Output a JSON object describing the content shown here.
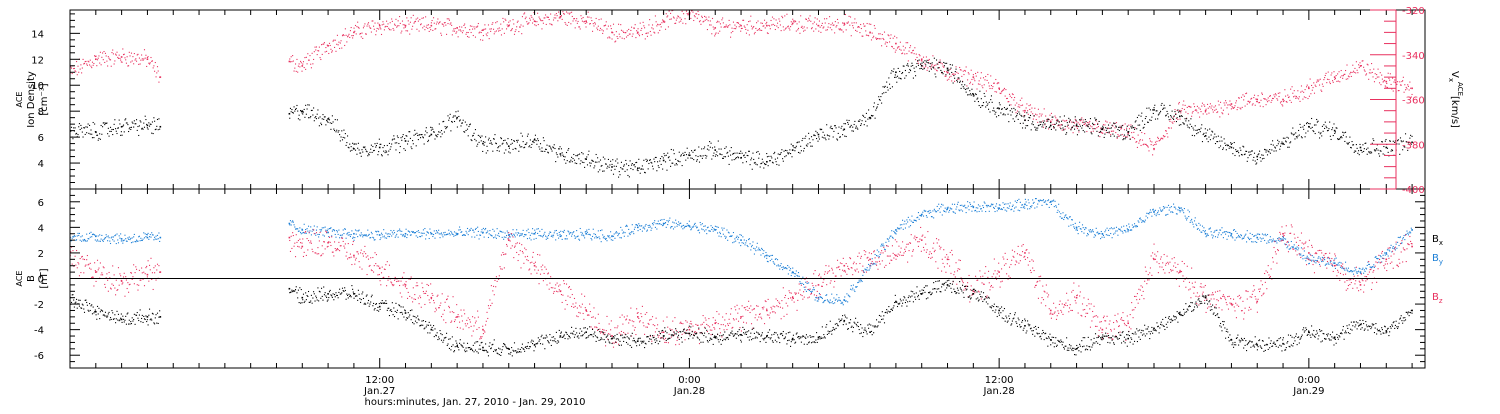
{
  "figure": {
    "xtitle": "hours:minutes, Jan. 27, 2010 - Jan. 29, 2010",
    "xticks": [
      {
        "t": 12,
        "time": "12:00",
        "date": "Jan.27"
      },
      {
        "t": 24,
        "time": "0:00",
        "date": "Jan.28"
      },
      {
        "t": 36,
        "time": "12:00",
        "date": "Jan.28"
      },
      {
        "t": 48,
        "time": "0:00",
        "date": "Jan.29"
      }
    ],
    "xlim_hours": [
      0,
      52.5
    ]
  },
  "colors": {
    "black": "#000000",
    "pink": "#e8315f",
    "blue": "#1c7fd6",
    "axis_right": "#e8315f"
  },
  "chart_data": [
    {
      "type": "scatter",
      "panel": "top",
      "ylabel_left": {
        "line1": "ACE",
        "line2": "Ion Density",
        "unit": "[cm⁻³]"
      },
      "ylabel_right": {
        "sym": "V",
        "sub": "x",
        "sup": "ACE",
        "unit": "[km/s]"
      },
      "ylim_left": [
        2,
        15.8
      ],
      "yticks_left": [
        4,
        6,
        8,
        10,
        12,
        14
      ],
      "ylim_right": [
        -400,
        -320
      ],
      "yticks_right": [
        -400,
        -380,
        -360,
        -340,
        -320
      ],
      "x_unit": "hours since Jan 27 0:00",
      "gaps": [
        [
          3.5,
          8.5
        ]
      ],
      "series": [
        {
          "axis": "left",
          "color": "black",
          "x": [
            0,
            1,
            2,
            3,
            3.5,
            8.5,
            9,
            10,
            11,
            12,
            13,
            14,
            15,
            16,
            17,
            18,
            19,
            20,
            21,
            22,
            23,
            24,
            25,
            26,
            27,
            28,
            29,
            30,
            31,
            32,
            33,
            34,
            35,
            36,
            37,
            38,
            39,
            40,
            41,
            42,
            43,
            44,
            45,
            46,
            47,
            48,
            49,
            50,
            51,
            52
          ],
          "y": [
            6.5,
            6.4,
            6.8,
            6.9,
            6.8,
            7.8,
            8.0,
            7.4,
            5.1,
            5.2,
            5.7,
            6.2,
            7.5,
            5.5,
            5.3,
            5.8,
            4.7,
            4.3,
            3.7,
            3.6,
            4.2,
            4.6,
            5.0,
            4.4,
            4.1,
            5.0,
            6.2,
            6.6,
            7.5,
            11.0,
            11.5,
            11.3,
            9.3,
            8.2,
            7.3,
            6.9,
            6.9,
            6.6,
            6.4,
            8.1,
            7.6,
            6.1,
            5.2,
            4.5,
            5.5,
            6.8,
            6.5,
            5.2,
            5.2,
            5.6
          ]
        },
        {
          "axis": "right",
          "color": "pink",
          "x": [
            0,
            1,
            2,
            3,
            3.5,
            8.5,
            9,
            10,
            11,
            12,
            13,
            14,
            15,
            16,
            17,
            18,
            19,
            20,
            21,
            22,
            23,
            24,
            25,
            26,
            27,
            28,
            29,
            30,
            31,
            32,
            33,
            34,
            35,
            36,
            37,
            38,
            39,
            40,
            41,
            42,
            43,
            44,
            45,
            46,
            47,
            48,
            49,
            50,
            51,
            52
          ],
          "y": [
            -348,
            -342,
            -341,
            -342,
            -350,
            -343,
            -345,
            -336,
            -330,
            -327,
            -327,
            -327,
            -328,
            -329,
            -327,
            -325,
            -323,
            -325,
            -330,
            -330,
            -325,
            -322,
            -328,
            -327,
            -327,
            -326,
            -327,
            -326,
            -330,
            -335,
            -342,
            -348,
            -350,
            -355,
            -365,
            -370,
            -372,
            -373,
            -375,
            -382,
            -365,
            -365,
            -362,
            -360,
            -360,
            -355,
            -350,
            -345,
            -352,
            -355
          ]
        }
      ]
    },
    {
      "type": "scatter",
      "panel": "bottom",
      "ylabel_left": {
        "line1": "ACE",
        "line2": "B",
        "unit": "[nT]"
      },
      "ylim": [
        -7,
        7
      ],
      "yticks": [
        -6,
        -4,
        -2,
        0,
        2,
        4,
        6
      ],
      "zero_line": true,
      "legend_position": "right",
      "gaps": [
        [
          3.5,
          8.5
        ]
      ],
      "series": [
        {
          "name": "Bx",
          "sym": "B",
          "sub": "x",
          "color": "black",
          "x": [
            0,
            1,
            2,
            3,
            3.5,
            8.5,
            9,
            10,
            11,
            12,
            13,
            14,
            15,
            16,
            17,
            18,
            19,
            20,
            21,
            22,
            23,
            24,
            25,
            26,
            27,
            28,
            29,
            30,
            31,
            32,
            33,
            34,
            35,
            36,
            37,
            38,
            39,
            40,
            41,
            42,
            43,
            44,
            45,
            46,
            47,
            48,
            49,
            50,
            51,
            52
          ],
          "y": [
            -1.5,
            -2.6,
            -3.2,
            -3.0,
            -3.0,
            -0.8,
            -1.5,
            -1.2,
            -1.2,
            -2.2,
            -2.7,
            -4.0,
            -5.3,
            -5.4,
            -5.5,
            -5.2,
            -4.5,
            -4.2,
            -4.7,
            -4.9,
            -4.5,
            -4.3,
            -4.6,
            -4.4,
            -4.5,
            -4.7,
            -4.6,
            -3.3,
            -4.2,
            -1.8,
            -1.2,
            -0.5,
            -1.2,
            -2.5,
            -3.7,
            -4.8,
            -5.5,
            -4.6,
            -4.7,
            -3.9,
            -2.8,
            -1.5,
            -4.8,
            -5.2,
            -5.1,
            -4.2,
            -4.6,
            -3.6,
            -4.1,
            -2.5
          ]
        },
        {
          "name": "By",
          "sym": "B",
          "sub": "y",
          "color": "blue",
          "x": [
            0,
            1,
            2,
            3,
            3.5,
            8.5,
            9,
            10,
            11,
            12,
            13,
            14,
            15,
            16,
            17,
            18,
            19,
            20,
            21,
            22,
            23,
            24,
            25,
            26,
            27,
            28,
            29,
            30,
            31,
            32,
            33,
            34,
            35,
            36,
            37,
            38,
            39,
            40,
            41,
            42,
            43,
            44,
            45,
            46,
            47,
            48,
            49,
            50,
            51,
            52
          ],
          "y": [
            3.2,
            3.3,
            3.1,
            3.2,
            3.2,
            4.3,
            3.8,
            3.6,
            3.5,
            3.4,
            3.5,
            3.5,
            3.5,
            3.6,
            3.4,
            3.5,
            3.3,
            3.5,
            3.3,
            4.0,
            4.3,
            4.1,
            3.8,
            3.0,
            1.8,
            0.5,
            -1.5,
            -1.7,
            1.0,
            3.8,
            5.0,
            5.5,
            5.6,
            5.5,
            5.8,
            6.0,
            4.0,
            3.5,
            3.8,
            5.2,
            5.5,
            3.5,
            3.5,
            3.2,
            3.0,
            1.5,
            1.2,
            0.5,
            2.0,
            3.8
          ]
        },
        {
          "name": "Bz",
          "sym": "B",
          "sub": "z",
          "color": "pink",
          "x": [
            0,
            1,
            2,
            3,
            3.5,
            8.5,
            9,
            10,
            11,
            12,
            13,
            14,
            15,
            16,
            17,
            18,
            19,
            20,
            21,
            22,
            23,
            24,
            25,
            26,
            27,
            28,
            29,
            30,
            31,
            32,
            33,
            34,
            35,
            36,
            37,
            38,
            39,
            40,
            41,
            42,
            43,
            44,
            45,
            46,
            47,
            48,
            49,
            50,
            51,
            52
          ],
          "y": [
            1.8,
            0.5,
            -0.2,
            0.3,
            0.5,
            3.2,
            2.5,
            2.8,
            1.8,
            0.8,
            -0.5,
            -1.5,
            -3.0,
            -4.0,
            3.0,
            1.0,
            -1.0,
            -2.5,
            -4.5,
            -3.0,
            -4.2,
            -4.0,
            -3.5,
            -3.0,
            -2.5,
            -1.5,
            -0.5,
            1.0,
            1.5,
            1.8,
            3.0,
            1.5,
            -1.0,
            0.5,
            2.0,
            -2.5,
            -1.5,
            -4.0,
            -3.5,
            1.5,
            0.5,
            -1.5,
            -2.0,
            -1.8,
            3.5,
            2.0,
            1.0,
            -0.5,
            1.5,
            2.5
          ]
        }
      ]
    }
  ]
}
